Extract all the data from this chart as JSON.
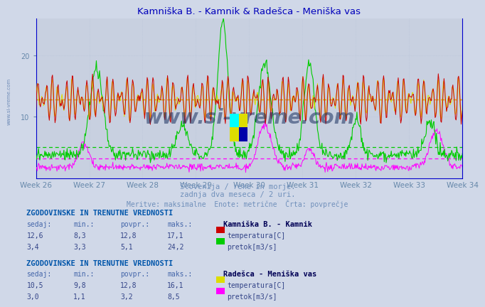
{
  "title": "Kamniška B. - Kamnik & Radešca - Meniška vas",
  "title_color": "#0000bb",
  "bg_color": "#d0d8e8",
  "plot_bg_color": "#c8d0e0",
  "weeks": [
    "Week 26",
    "Week 27",
    "Week 28",
    "Week 29",
    "Week 30",
    "Week 31",
    "Week 32",
    "Week 33",
    "Week 34"
  ],
  "n_points": 672,
  "ylim": [
    0,
    26
  ],
  "yticks": [
    10,
    20
  ],
  "avg_temp_kamnik": 12.8,
  "avg_flow_kamnik": 5.1,
  "avg_temp_radesca": 12.8,
  "avg_flow_radesca": 3.2,
  "subtitle1": "Slovenija / reke in morje.",
  "subtitle2": "zadnja dva meseca / 2 uri.",
  "subtitle3": "Meritve: maksimalne  Enote: metrične  Črta: povprečje",
  "subtitle_color": "#7090bb",
  "table1_header": "ZGODOVINSKE IN TRENUTNE VREDNOSTI",
  "table1_station": "Kamniška B. - Kamnik",
  "table1_cols": [
    "sedaj:",
    "min.:",
    "povpr.:",
    "maks.:"
  ],
  "table1_row1": [
    "12,6",
    "8,3",
    "12,8",
    "17,1"
  ],
  "table1_row2": [
    "3,4",
    "3,3",
    "5,1",
    "24,2"
  ],
  "table1_legend1": "temperatura[C]",
  "table1_legend2": "pretok[m3/s]",
  "table1_color1": "#cc0000",
  "table1_color2": "#00cc00",
  "table2_header": "ZGODOVINSKE IN TRENUTNE VREDNOSTI",
  "table2_station": "Radešca - Meniška vas",
  "table2_cols": [
    "sedaj:",
    "min.:",
    "povpr.:",
    "maks.:"
  ],
  "table2_row1": [
    "10,5",
    "9,8",
    "12,8",
    "16,1"
  ],
  "table2_row2": [
    "3,0",
    "1,1",
    "3,2",
    "8,5"
  ],
  "table2_legend1": "temperatura[C]",
  "table2_legend2": "pretok[m3/s]",
  "table2_color1": "#dddd00",
  "table2_color2": "#ff00ff",
  "watermark": "www.si-vreme.com",
  "watermark_color": "#1a3060",
  "grid_color": "#b8c4d8",
  "axis_color": "#6688aa",
  "spine_color": "#0000cc"
}
